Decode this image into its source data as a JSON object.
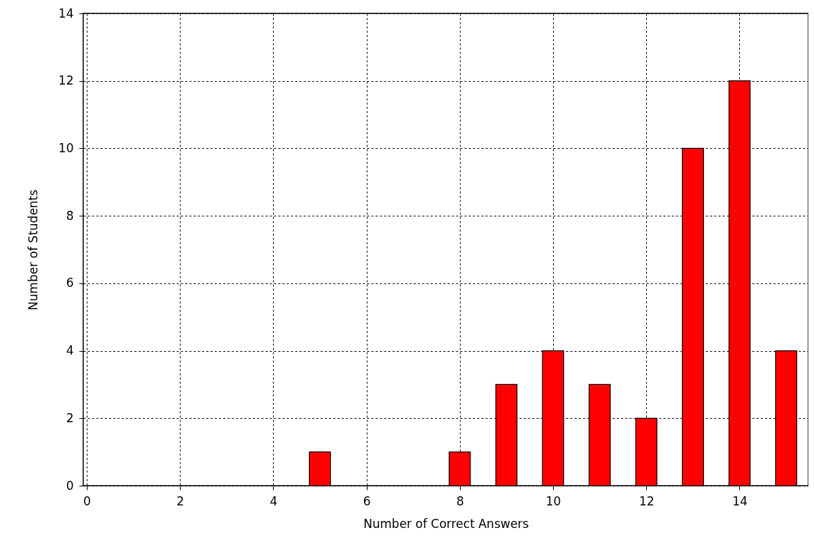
{
  "chart_data": {
    "type": "bar",
    "xlabel": "Number of Correct Answers",
    "ylabel": "Number of Students",
    "x": [
      5,
      8,
      9,
      10,
      11,
      12,
      13,
      14,
      15
    ],
    "values": [
      1,
      1,
      3,
      4,
      3,
      2,
      10,
      12,
      4
    ],
    "color": "#ff0000",
    "xlim": [
      0,
      15.4
    ],
    "xticks": [
      0,
      2,
      4,
      6,
      8,
      10,
      12,
      14
    ],
    "ylim": [
      0,
      14
    ],
    "yticks": [
      0,
      2,
      4,
      6,
      8,
      10,
      12,
      14
    ],
    "grid": true
  }
}
